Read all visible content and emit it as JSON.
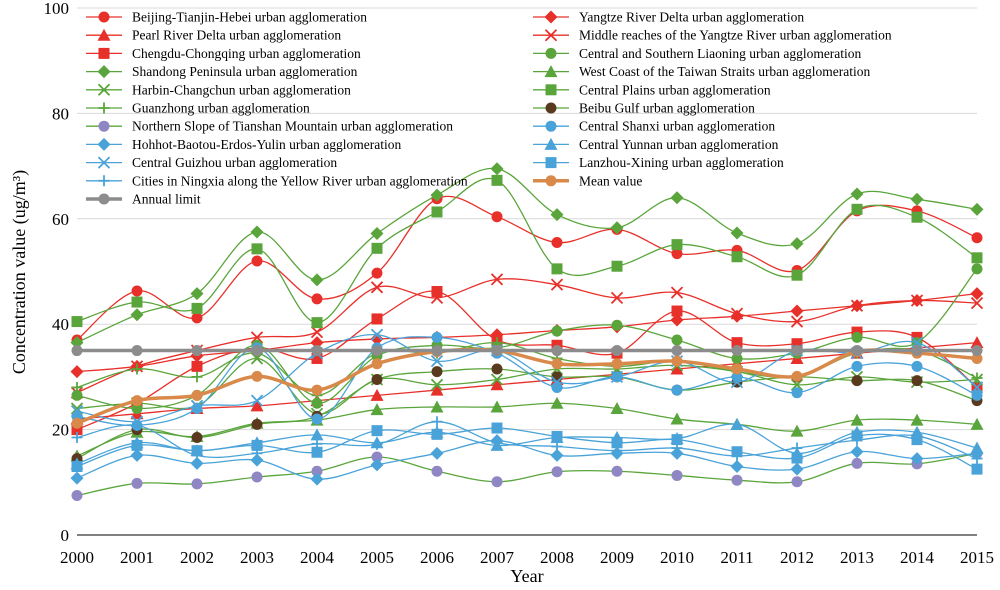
{
  "chart_data": {
    "type": "line",
    "xlabel": "Year",
    "ylabel": "Concentration value (ug/m³)",
    "ylim": [
      0,
      100
    ],
    "yticks": [
      "0",
      "20",
      "40",
      "60",
      "80",
      "100"
    ],
    "x": [
      "2000",
      "2001",
      "2002",
      "2003",
      "2004",
      "2005",
      "2006",
      "2007",
      "2008",
      "2009",
      "2010",
      "2011",
      "2012",
      "2013",
      "2014",
      "2015"
    ],
    "grid": "horizontal",
    "legend_position": "top",
    "series": [
      {
        "name": "Beijing-Tianjin-Hebei urban agglomeration",
        "color": "#e8302a",
        "marker": "circle",
        "values": [
          37,
          46.3,
          41.2,
          52,
          44.8,
          49.7,
          63.8,
          60.4,
          55.5,
          58,
          53.4,
          54,
          50.2,
          61.5,
          61.5,
          56.4
        ]
      },
      {
        "name": "Yangtze River Delta urban agglomeration",
        "color": "#e8302a",
        "marker": "diamond",
        "values": [
          31,
          32,
          34,
          35,
          36.5,
          37.2,
          37.5,
          38,
          38.8,
          39.5,
          40.8,
          41.5,
          42.5,
          43.5,
          44.5,
          45.8
        ]
      },
      {
        "name": "Pearl River Delta urban agglomeration",
        "color": "#e8302a",
        "marker": "triangle",
        "values": [
          22,
          23,
          24,
          24.5,
          25.5,
          26.5,
          27.5,
          28.5,
          29.5,
          30.5,
          31.5,
          32.5,
          33.5,
          34.5,
          35.5,
          36.5
        ]
      },
      {
        "name": "Middle reaches of the Yangtze River urban agglomeration",
        "color": "#e8302a",
        "marker": "x",
        "values": [
          27,
          32,
          35,
          37.5,
          38.5,
          47,
          45,
          48.5,
          47.5,
          45,
          46,
          42,
          40.5,
          43.5,
          44.5,
          44
        ]
      },
      {
        "name": "Chengdu-Chongqing urban agglomeration",
        "color": "#e8302a",
        "marker": "square",
        "values": [
          20,
          25,
          32,
          35.5,
          33.5,
          41,
          46.2,
          37,
          36,
          34.5,
          42.5,
          36.5,
          36.3,
          38.5,
          37.5,
          28
        ]
      },
      {
        "name": "Central and Southern Liaoning urban agglomeration",
        "color": "#5aa53b",
        "marker": "circle",
        "values": [
          26.5,
          24,
          26.5,
          36,
          25,
          34,
          36,
          35.5,
          38.7,
          39.8,
          37,
          33.5,
          34.5,
          37.5,
          36.5,
          50.5
        ]
      },
      {
        "name": "Shandong Peninsula urban agglomeration",
        "color": "#5aa53b",
        "marker": "diamond",
        "values": [
          36.5,
          41.8,
          45.8,
          57.5,
          48.4,
          57.2,
          64.5,
          69.5,
          60.8,
          58.3,
          64,
          57.3,
          55.3,
          64.7,
          63.7,
          61.8
        ]
      },
      {
        "name": "West Coast of the Taiwan Straits urban agglomeration",
        "color": "#5aa53b",
        "marker": "triangle",
        "values": [
          15,
          19.5,
          18.7,
          21.2,
          21.8,
          23.8,
          24.3,
          24.3,
          25,
          24,
          22,
          21,
          19.7,
          21.8,
          21.8,
          21
        ]
      },
      {
        "name": "Harbin-Changchun urban agglomeration",
        "color": "#5aa53b",
        "marker": "x",
        "values": [
          24,
          25,
          24.5,
          33.5,
          23,
          29.5,
          28.5,
          29.5,
          31.5,
          31.5,
          32.2,
          31,
          28.5,
          30,
          29,
          29.5
        ]
      },
      {
        "name": "Central Plains urban agglomeration",
        "color": "#5aa53b",
        "marker": "square",
        "values": [
          40.5,
          44.2,
          43,
          54.3,
          40.3,
          54.4,
          61.3,
          67.3,
          50.5,
          51,
          55.1,
          52.8,
          49.3,
          61.8,
          60.3,
          52.6
        ]
      },
      {
        "name": "Guanzhong urban agglomeration",
        "color": "#5aa53b",
        "marker": "plus",
        "values": [
          28,
          31.5,
          30,
          34.5,
          26.5,
          34.5,
          34.5,
          36.5,
          33.5,
          32,
          33,
          31,
          30,
          34.5,
          35,
          29.8
        ]
      },
      {
        "name": "Beibu Gulf urban agglomeration",
        "color": "#5aa53b",
        "marker": "circle-dark",
        "values": [
          14.5,
          20,
          18.5,
          21,
          22.5,
          29.5,
          31,
          31.5,
          30,
          30,
          27.5,
          29,
          30,
          29.3,
          29.3,
          25.5
        ]
      },
      {
        "name": "Northern Slope of Tianshan Mountain urban agglomeration",
        "color": "#5aa53b",
        "marker": "circle-purple",
        "values": [
          7.5,
          9.8,
          9.7,
          11,
          12.1,
          14.8,
          12.1,
          10.1,
          12,
          12.1,
          11.3,
          10.4,
          10.1,
          13.6,
          13.5,
          15.5
        ]
      },
      {
        "name": "Central Shanxi urban agglomeration",
        "color": "#4aa3d8",
        "marker": "circle",
        "values": [
          22.5,
          20.8,
          24,
          35.5,
          22,
          35.5,
          37.5,
          34.5,
          28,
          30,
          27.5,
          30,
          27,
          32,
          32,
          26.5
        ]
      },
      {
        "name": "Hohhot-Baotou-Erdos-Yulin urban agglomeration",
        "color": "#4aa3d8",
        "marker": "diamond",
        "values": [
          10.8,
          15.1,
          13.6,
          14.2,
          10.6,
          13.3,
          15.5,
          17.9,
          15.1,
          15.5,
          15.5,
          13,
          12.5,
          15.8,
          14.5,
          15.5
        ]
      },
      {
        "name": "Central Yunnan urban agglomeration",
        "color": "#4aa3d8",
        "marker": "triangle",
        "values": [
          13.5,
          17.5,
          16,
          17.5,
          19,
          17.5,
          19.5,
          17,
          18.5,
          18.5,
          18.3,
          21,
          15.5,
          19.5,
          19.5,
          16.5
        ]
      },
      {
        "name": "Central Guizhou urban agglomeration",
        "color": "#4aa3d8",
        "marker": "x",
        "values": [
          23.5,
          21.5,
          24.5,
          25.5,
          34.5,
          38,
          33,
          35,
          29,
          30,
          33,
          29,
          35,
          34.5,
          36.5,
          28
        ]
      },
      {
        "name": "Lanzhou-Xining urban agglomeration",
        "color": "#4aa3d8",
        "marker": "square",
        "values": [
          13,
          17,
          16,
          17,
          15.7,
          19.8,
          19.1,
          20.3,
          18.7,
          17.5,
          18.1,
          15.8,
          14.6,
          18.8,
          18.1,
          12.5
        ]
      },
      {
        "name": "Cities in Ningxia along the Yellow River urban agglomeration",
        "color": "#4aa3d8",
        "marker": "plus",
        "values": [
          18.5,
          20.8,
          15.1,
          15.5,
          17.3,
          17.2,
          21.5,
          17.5,
          16.8,
          16,
          16.5,
          15,
          16.5,
          18,
          18.8,
          14.5
        ]
      },
      {
        "name": "Mean value",
        "color": "#d98a4a",
        "marker": "circle",
        "thick": true,
        "values": [
          21.2,
          25.5,
          26.5,
          30.1,
          27.5,
          32.5,
          34.8,
          35,
          32.5,
          32.5,
          33,
          31.5,
          30.1,
          34.8,
          34.5,
          33.5
        ]
      },
      {
        "name": "Annual limit",
        "color": "#8c8c8c",
        "marker": "circle-gray",
        "thick": true,
        "values": [
          35,
          35,
          35,
          35,
          35,
          35,
          35,
          35,
          35,
          35,
          35,
          35,
          35,
          35,
          35,
          35
        ]
      }
    ]
  }
}
